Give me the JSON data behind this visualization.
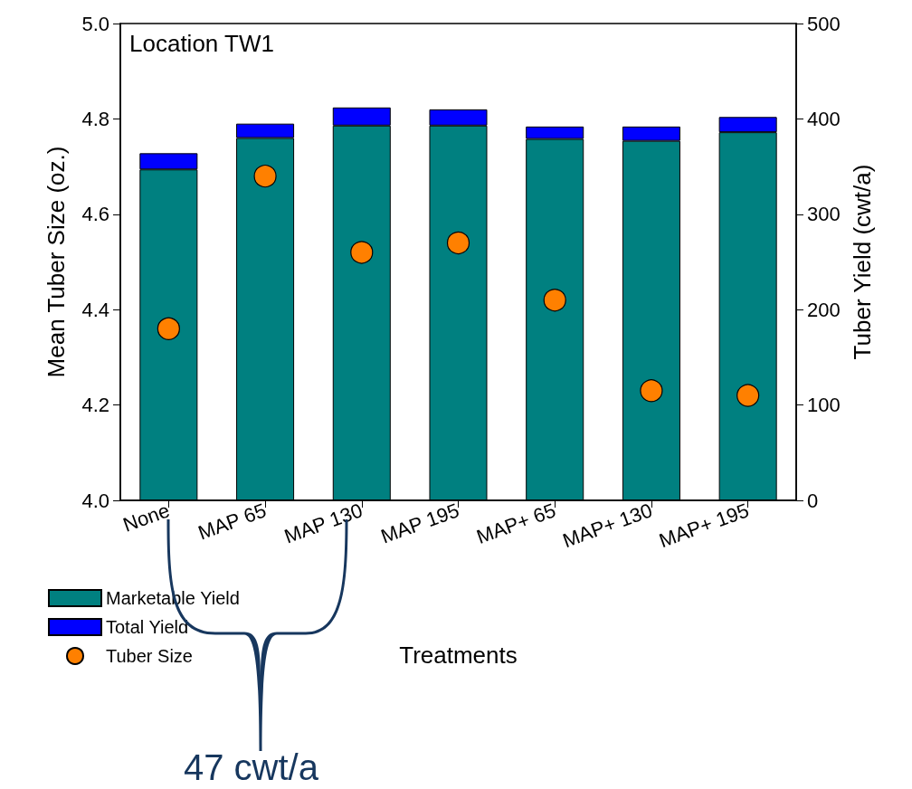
{
  "chart_data": {
    "type": "bar",
    "title": "Location TW1",
    "xlabel": "Treatments",
    "ylabel": "Mean Tuber Size (oz.)",
    "y2label": "Tuber Yield (cwt/a)",
    "categories": [
      "None",
      "MAP 65",
      "MAP 130",
      "MAP 195",
      "MAP+ 65",
      "MAP+ 130",
      "MAP+ 195"
    ],
    "series": [
      {
        "name": "Marketable Yield",
        "axis": "y2",
        "color": "#008080",
        "values": [
          347,
          380,
          393,
          393,
          379,
          377,
          386
        ]
      },
      {
        "name": "Total Yield",
        "axis": "y2",
        "color": "#0000ff",
        "values": [
          17,
          15,
          19,
          17,
          13,
          15,
          16
        ]
      },
      {
        "name": "Tuber Size",
        "type": "scatter",
        "axis": "y",
        "color": "#ff8000",
        "x": [
          "None",
          "MAP 65",
          "MAP 130",
          "MAP 195",
          "MAP+ 65",
          "MAP+ 130",
          "MAP+ 195"
        ],
        "values": [
          4.36,
          4.68,
          4.52,
          4.54,
          4.42,
          4.23,
          4.22
        ]
      }
    ],
    "stacked": true,
    "marker": "circle",
    "legend": "bottom left",
    "grid": false,
    "ylim": [
      4.0,
      5.0
    ],
    "yticks": [
      {
        "value": 4,
        "label": "4.0"
      },
      {
        "value": 4.2,
        "label": "4.2"
      },
      {
        "value": 4.4,
        "label": "4.4"
      },
      {
        "value": 4.6,
        "label": "4.6"
      },
      {
        "value": 4.8,
        "label": "4.8"
      },
      {
        "value": 5,
        "label": "5.0"
      }
    ],
    "y2lim": [
      0,
      500
    ],
    "y2ticks": [
      0,
      100,
      200,
      300,
      400,
      500
    ],
    "annotations": [
      "47 cwt/a"
    ]
  }
}
